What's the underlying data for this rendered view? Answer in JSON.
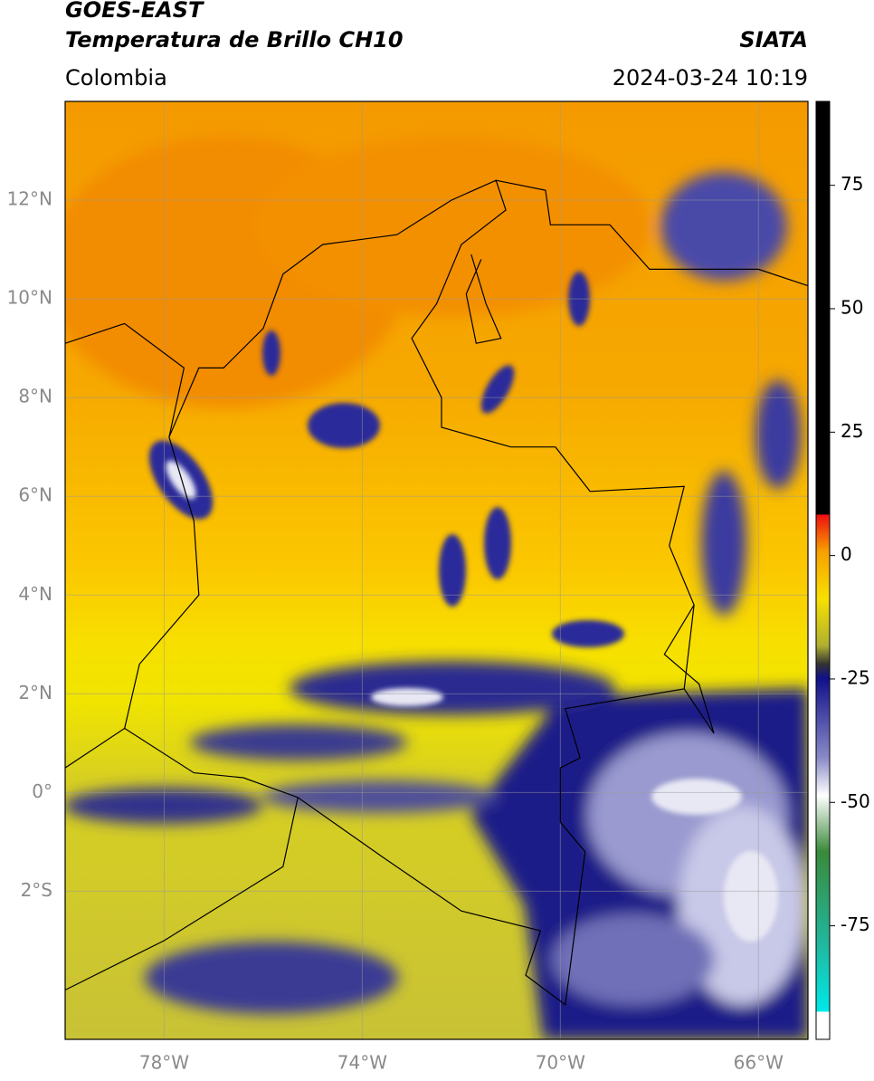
{
  "header": {
    "satellite": "GOES-EAST",
    "product": "Temperatura de Brillo CH10",
    "source": "SIATA",
    "region": "Colombia",
    "datetime": "2024-03-24 10:19"
  },
  "map": {
    "lon_range": [
      -80,
      -65
    ],
    "lat_range": [
      -5,
      14
    ],
    "lon_ticks": [
      {
        "value": -78,
        "label": "78°W"
      },
      {
        "value": -74,
        "label": "74°W"
      },
      {
        "value": -70,
        "label": "70°W"
      },
      {
        "value": -66,
        "label": "66°W"
      }
    ],
    "lat_ticks": [
      {
        "value": 12,
        "label": "12°N"
      },
      {
        "value": 10,
        "label": "10°N"
      },
      {
        "value": 8,
        "label": "8°N"
      },
      {
        "value": 6,
        "label": "6°N"
      },
      {
        "value": 4,
        "label": "4°N"
      },
      {
        "value": 2,
        "label": "2°N"
      },
      {
        "value": 0,
        "label": "0°"
      },
      {
        "value": -2,
        "label": "2°S"
      }
    ]
  },
  "colorbar": {
    "range": [
      -98,
      92
    ],
    "ticks": [
      75,
      50,
      25,
      0,
      -25,
      -50,
      -75
    ]
  }
}
